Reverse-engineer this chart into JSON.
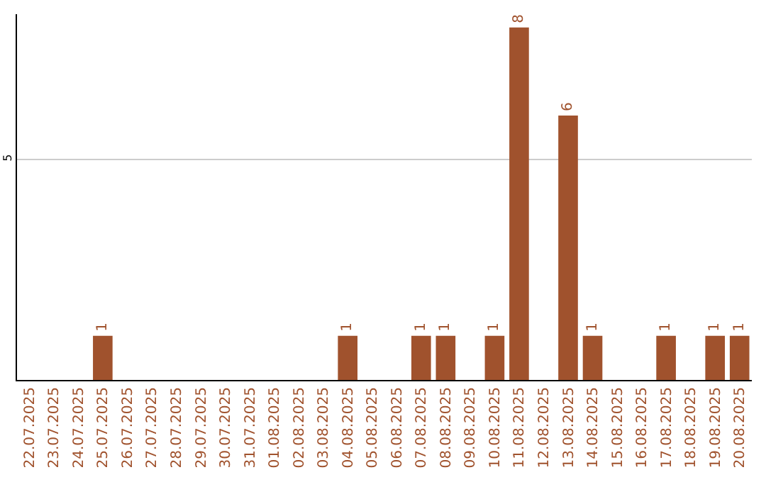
{
  "chart_data": {
    "type": "bar",
    "categories": [
      "22.07.2025",
      "23.07.2025",
      "24.07.2025",
      "25.07.2025",
      "26.07.2025",
      "27.07.2025",
      "28.07.2025",
      "29.07.2025",
      "30.07.2025",
      "31.07.2025",
      "01.08.2025",
      "02.08.2025",
      "03.08.2025",
      "04.08.2025",
      "05.08.2025",
      "06.08.2025",
      "07.08.2025",
      "08.08.2025",
      "09.08.2025",
      "10.08.2025",
      "11.08.2025",
      "12.08.2025",
      "13.08.2025",
      "14.08.2025",
      "15.08.2025",
      "16.08.2025",
      "17.08.2025",
      "18.08.2025",
      "19.08.2025",
      "20.08.2025"
    ],
    "values": [
      null,
      null,
      null,
      1,
      null,
      null,
      null,
      null,
      null,
      null,
      null,
      null,
      null,
      1,
      null,
      null,
      1,
      1,
      null,
      1,
      8,
      null,
      6,
      1,
      null,
      null,
      1,
      null,
      1,
      1
    ],
    "color": "#a0522d",
    "ylim": [
      0,
      8.3
    ],
    "yticks": [
      5
    ],
    "grid": "y",
    "data_labels": true
  }
}
